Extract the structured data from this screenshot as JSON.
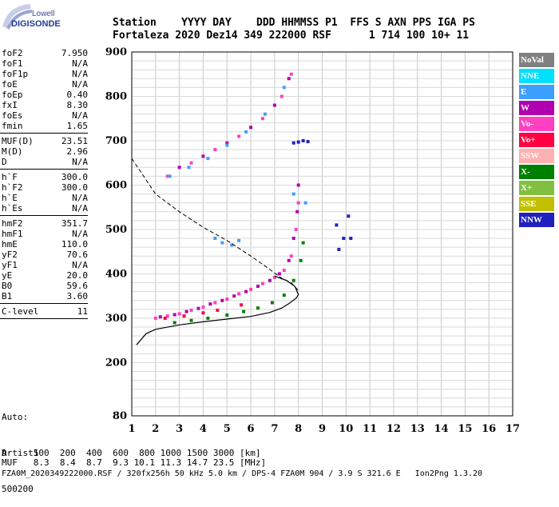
{
  "logo": {
    "line1": "Lowell",
    "line2": "DIGISONDE"
  },
  "header": {
    "line1": "Station    YYYY DAY    DDD HHMMSS P1  FFS S AXN PPS IGA PS",
    "line2": "Fortaleza 2020 Dez14 349 222000 RSF      1 714 100 10+ 11"
  },
  "params_group1": [
    {
      "name": "foF2",
      "value": "7.950"
    },
    {
      "name": "foF1",
      "value": "N/A"
    },
    {
      "name": "foF1p",
      "value": "N/A"
    },
    {
      "name": "foE",
      "value": "N/A"
    },
    {
      "name": "foEp",
      "value": "0.40"
    },
    {
      "name": "fxI",
      "value": "8.30"
    },
    {
      "name": "foEs",
      "value": "N/A"
    },
    {
      "name": "fmin",
      "value": "1.65"
    }
  ],
  "params_group2": [
    {
      "name": "MUF(D)",
      "value": "23.51"
    },
    {
      "name": "M(D)",
      "value": "2.96"
    },
    {
      "name": "D",
      "value": "N/A"
    }
  ],
  "params_group3": [
    {
      "name": "h`F",
      "value": "300.0"
    },
    {
      "name": "h`F2",
      "value": "300.0"
    },
    {
      "name": "h`E",
      "value": "N/A"
    },
    {
      "name": "h`Es",
      "value": "N/A"
    }
  ],
  "params_group4": [
    {
      "name": "hmF2",
      "value": "351.7"
    },
    {
      "name": "hmF1",
      "value": "N/A"
    },
    {
      "name": "hmE",
      "value": "110.0"
    },
    {
      "name": "yF2",
      "value": "70.6"
    },
    {
      "name": "yF1",
      "value": "N/A"
    },
    {
      "name": "yE",
      "value": "20.0"
    },
    {
      "name": "B0",
      "value": "59.6"
    },
    {
      "name": "B1",
      "value": "3.60"
    }
  ],
  "params_group5": [
    {
      "name": "C-level",
      "value": "11"
    }
  ],
  "auto": {
    "line1": "Auto:",
    "line2": "Artist5",
    "line3": "500200"
  },
  "legend": [
    {
      "label": "NoVal",
      "color": "#808080"
    },
    {
      "label": "NNE",
      "color": "#00e0ff"
    },
    {
      "label": "E",
      "color": "#3ca0ff"
    },
    {
      "label": "W",
      "color": "#b000b0"
    },
    {
      "label": "Vo-",
      "color": "#ff40c0"
    },
    {
      "label": "Vo+",
      "color": "#ff0040"
    },
    {
      "label": "SSW",
      "color": "#ffb0b0"
    },
    {
      "label": "X-",
      "color": "#008000"
    },
    {
      "label": "X+",
      "color": "#80c040"
    },
    {
      "label": "SSE",
      "color": "#c0c000"
    },
    {
      "label": "NNW",
      "color": "#2020c0"
    }
  ],
  "footer": {
    "d_line": "D     100  200  400  600  800 1000 1500 3000 [km]",
    "muf_line": "MUF   8.3  8.4  8.7  9.3 10.1 11.3 14.7 23.5 [MHz]",
    "file_line": "FZA0M_2020349222000.RSF / 320fx256h 50 kHz 5.0 km / DPS-4 FZA0M 904 / 3.9 S 321.6 E   Ion2Png 1.3.20"
  },
  "chart_data": {
    "type": "scatter",
    "title": "",
    "xlabel": "",
    "ylabel": "",
    "xlim": [
      1,
      17
    ],
    "ylim": [
      80,
      900
    ],
    "x_ticks": [
      1,
      2,
      3,
      4,
      5,
      6,
      7,
      8,
      9,
      10,
      11,
      12,
      13,
      14,
      15,
      16,
      17
    ],
    "y_ticks": [
      80,
      200,
      300,
      400,
      500,
      600,
      700,
      800,
      900
    ],
    "grid": true,
    "series": [
      {
        "name": "Vo-",
        "color": "#ff40c0",
        "points": [
          [
            2.0,
            300
          ],
          [
            2.5,
            305
          ],
          [
            3.0,
            310
          ],
          [
            3.5,
            318
          ],
          [
            4.0,
            325
          ],
          [
            4.5,
            335
          ],
          [
            5.0,
            343
          ],
          [
            5.5,
            355
          ],
          [
            6.0,
            365
          ],
          [
            6.5,
            378
          ],
          [
            7.0,
            392
          ],
          [
            7.4,
            408
          ],
          [
            7.7,
            440
          ],
          [
            7.9,
            500
          ],
          [
            8.0,
            560
          ],
          [
            2.5,
            620
          ],
          [
            3.5,
            650
          ],
          [
            4.5,
            680
          ],
          [
            5.5,
            710
          ],
          [
            6.5,
            750
          ],
          [
            7.3,
            800
          ],
          [
            7.7,
            850
          ]
        ]
      },
      {
        "name": "W",
        "color": "#b000b0",
        "points": [
          [
            2.2,
            303
          ],
          [
            2.8,
            308
          ],
          [
            3.3,
            315
          ],
          [
            3.8,
            322
          ],
          [
            4.3,
            332
          ],
          [
            4.8,
            340
          ],
          [
            5.3,
            350
          ],
          [
            5.8,
            360
          ],
          [
            6.3,
            372
          ],
          [
            6.8,
            385
          ],
          [
            7.2,
            400
          ],
          [
            7.6,
            430
          ],
          [
            7.8,
            480
          ],
          [
            7.95,
            540
          ],
          [
            8.0,
            600
          ],
          [
            3.0,
            640
          ],
          [
            4.0,
            665
          ],
          [
            5.0,
            695
          ],
          [
            6.0,
            730
          ],
          [
            7.0,
            780
          ],
          [
            7.6,
            840
          ]
        ]
      },
      {
        "name": "E",
        "color": "#3ca0ff",
        "points": [
          [
            2.6,
            620
          ],
          [
            3.4,
            640
          ],
          [
            4.2,
            660
          ],
          [
            5.0,
            690
          ],
          [
            5.8,
            720
          ],
          [
            6.6,
            760
          ],
          [
            7.4,
            820
          ],
          [
            4.5,
            480
          ],
          [
            4.8,
            470
          ],
          [
            5.2,
            465
          ],
          [
            5.5,
            475
          ],
          [
            7.8,
            580
          ],
          [
            8.3,
            560
          ]
        ]
      },
      {
        "name": "X-",
        "color": "#008000",
        "points": [
          [
            2.8,
            290
          ],
          [
            3.5,
            295
          ],
          [
            4.2,
            300
          ],
          [
            5.0,
            307
          ],
          [
            5.7,
            315
          ],
          [
            6.3,
            323
          ],
          [
            6.9,
            335
          ],
          [
            7.4,
            352
          ],
          [
            7.8,
            385
          ],
          [
            8.1,
            430
          ],
          [
            8.2,
            470
          ]
        ]
      },
      {
        "name": "NNW",
        "color": "#2020c0",
        "points": [
          [
            7.8,
            695
          ],
          [
            8.0,
            697
          ],
          [
            8.2,
            700
          ],
          [
            8.4,
            698
          ],
          [
            9.6,
            510
          ],
          [
            9.9,
            480
          ],
          [
            10.1,
            530
          ],
          [
            10.2,
            480
          ],
          [
            9.7,
            455
          ]
        ]
      },
      {
        "name": "Vo+",
        "color": "#ff0040",
        "points": [
          [
            2.4,
            300
          ],
          [
            3.2,
            305
          ],
          [
            4.0,
            312
          ],
          [
            4.6,
            318
          ],
          [
            5.6,
            330
          ]
        ]
      }
    ],
    "profile_solid": [
      [
        1.2,
        240
      ],
      [
        1.6,
        265
      ],
      [
        2.0,
        275
      ],
      [
        3.0,
        285
      ],
      [
        4.0,
        292
      ],
      [
        5.0,
        298
      ],
      [
        6.0,
        304
      ],
      [
        6.8,
        313
      ],
      [
        7.3,
        323
      ],
      [
        7.6,
        333
      ],
      [
        7.9,
        345
      ],
      [
        8.0,
        353
      ],
      [
        7.85,
        372
      ],
      [
        7.5,
        385
      ],
      [
        7.0,
        395
      ]
    ],
    "profile_dashed": [
      [
        1.0,
        660
      ],
      [
        2.0,
        580
      ],
      [
        3.0,
        540
      ],
      [
        4.0,
        505
      ],
      [
        5.0,
        475
      ],
      [
        6.0,
        440
      ],
      [
        6.8,
        410
      ],
      [
        7.3,
        390
      ],
      [
        7.7,
        380
      ],
      [
        8.0,
        362
      ]
    ]
  }
}
